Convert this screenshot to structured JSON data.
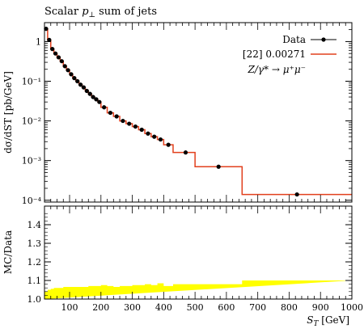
{
  "chart_data": [
    {
      "type": "line",
      "title": "Scalar p⊥ sum of jets",
      "ylabel": "dσ/dST [pb/GeV]",
      "xlabel": "",
      "log_y": true,
      "xlim": [
        20,
        1000
      ],
      "ylim": [
        9e-05,
        3
      ],
      "y_ticks": [
        0.0001,
        0.001,
        0.01,
        0.1,
        1
      ],
      "y_tick_labels": [
        "10⁻⁴",
        "10⁻³",
        "10⁻²",
        "10⁻¹",
        "1"
      ],
      "legend": {
        "placement": "top-right",
        "entries": [
          "Data",
          "[22] 0.00271",
          "Z/γ* → μ⁺μ⁻"
        ]
      },
      "series": [
        {
          "name": "Data",
          "style": "points",
          "color": "#000000",
          "x": [
            25,
            35,
            45,
            55,
            65,
            75,
            85,
            95,
            105,
            115,
            125,
            135,
            145,
            155,
            165,
            175,
            185,
            195,
            210,
            230,
            250,
            270,
            290,
            310,
            330,
            350,
            370,
            390,
            415,
            470,
            575,
            825
          ],
          "y": [
            2.1,
            1.1,
            0.65,
            0.5,
            0.4,
            0.32,
            0.24,
            0.19,
            0.15,
            0.12,
            0.1,
            0.082,
            0.07,
            0.057,
            0.048,
            0.04,
            0.035,
            0.03,
            0.022,
            0.016,
            0.013,
            0.01,
            0.0085,
            0.0072,
            0.006,
            0.0048,
            0.004,
            0.0034,
            0.0025,
            0.0016,
            0.0007,
            0.00014
          ]
        },
        {
          "name": "[22] 0.00271",
          "style": "histogram",
          "color": "#e2401d",
          "edges": [
            20,
            30,
            40,
            50,
            60,
            70,
            80,
            90,
            100,
            110,
            120,
            130,
            140,
            150,
            160,
            170,
            180,
            190,
            200,
            220,
            240,
            260,
            280,
            300,
            320,
            340,
            360,
            380,
            400,
            430,
            500,
            650,
            1000
          ],
          "y": [
            2.1,
            1.1,
            0.65,
            0.5,
            0.4,
            0.32,
            0.24,
            0.19,
            0.15,
            0.12,
            0.1,
            0.082,
            0.07,
            0.057,
            0.048,
            0.04,
            0.035,
            0.03,
            0.022,
            0.016,
            0.013,
            0.01,
            0.0085,
            0.0072,
            0.006,
            0.0048,
            0.004,
            0.0034,
            0.0025,
            0.0016,
            0.0007,
            0.00014
          ]
        }
      ]
    },
    {
      "type": "area",
      "ylabel": "MC/Data",
      "xlabel": "ST [GeV]",
      "xlim": [
        20,
        1000
      ],
      "ylim": [
        1.0,
        1.5
      ],
      "y_ticks": [
        1.0,
        1.1,
        1.2,
        1.3,
        1.4
      ],
      "y_tick_labels": [
        "1.0",
        "1.1",
        "1.2",
        "1.3",
        "1.4"
      ],
      "x_ticks": [
        100,
        200,
        300,
        400,
        500,
        600,
        700,
        800,
        900,
        1000
      ],
      "x_tick_labels": [
        "100",
        "200",
        "300",
        "400",
        "500",
        "600",
        "700",
        "800",
        "900",
        "1000"
      ],
      "band": {
        "color": "#ffff00",
        "lower": 1.0,
        "edges": [
          20,
          30,
          40,
          50,
          60,
          80,
          100,
          120,
          140,
          160,
          180,
          200,
          220,
          240,
          260,
          280,
          300,
          320,
          340,
          360,
          380,
          400,
          430,
          500,
          650,
          1000
        ],
        "upper": [
          1.04,
          1.05,
          1.055,
          1.06,
          1.06,
          1.065,
          1.065,
          1.065,
          1.065,
          1.07,
          1.07,
          1.075,
          1.07,
          1.065,
          1.07,
          1.07,
          1.075,
          1.075,
          1.08,
          1.075,
          1.085,
          1.07,
          1.08,
          1.08,
          1.1,
          1.1
        ]
      }
    }
  ]
}
